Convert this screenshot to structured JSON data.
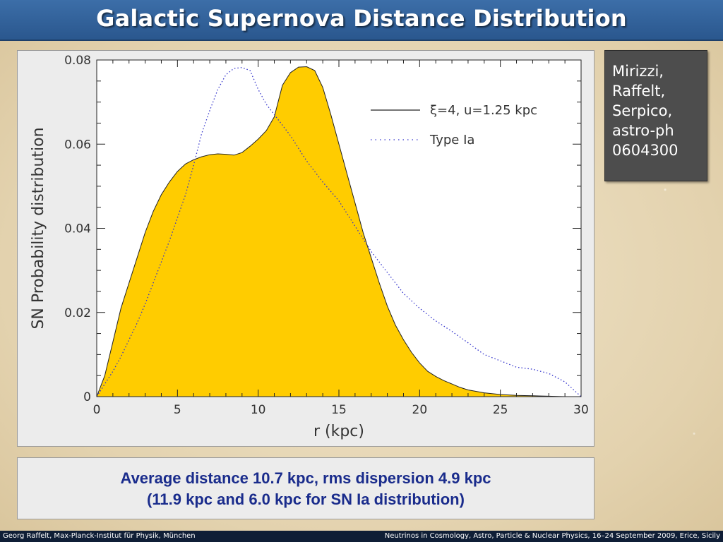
{
  "slide": {
    "title": "Galactic Supernova Distance Distribution",
    "reference_lines": [
      "Mirizzi,",
      "Raffelt,",
      "Serpico,",
      "astro-ph",
      "0604300"
    ],
    "summary_lines": [
      "Average distance 10.7 kpc, rms dispersion 4.9 kpc",
      "(11.9 kpc and 6.0 kpc for SN Ia distribution)"
    ],
    "footer_left": "Georg Raffelt, Max-Planck-Institut für Physik, München",
    "footer_right": "Neutrinos in Cosmology, Astro, Particle & Nuclear Physics, 16–24 September 2009, Erice, Sicily"
  },
  "colors": {
    "title_bar": "#2f5f99",
    "fill": "#ffcc00",
    "dotted": "#3333cc",
    "summary_text": "#1a2c8c",
    "ref_box": "#4d4d4d"
  },
  "chart_data": {
    "type": "area",
    "xlabel": "r (kpc)",
    "ylabel": "SN Probability distribution",
    "xlim": [
      0,
      30
    ],
    "ylim": [
      0,
      0.08
    ],
    "xticks": [
      "0",
      "5",
      "10",
      "15",
      "20",
      "25",
      "30"
    ],
    "yticks": [
      "0",
      "0.02",
      "0.04",
      "0.06",
      "0.08"
    ],
    "xtick_values": [
      0,
      5,
      10,
      15,
      20,
      25,
      30
    ],
    "ytick_values": [
      0,
      0.02,
      0.04,
      0.06,
      0.08
    ],
    "legend_position": "top-right",
    "series": [
      {
        "name": "ξ=4, u=1.25 kpc",
        "style": "solid-filled",
        "x": [
          0,
          0.5,
          1,
          1.5,
          2,
          2.5,
          3,
          3.5,
          4,
          4.5,
          5,
          5.5,
          6,
          6.5,
          7,
          7.5,
          8,
          8.5,
          9,
          9.5,
          10,
          10.5,
          11,
          11.5,
          12,
          12.5,
          13,
          13.5,
          14,
          14.5,
          15,
          15.5,
          16,
          16.5,
          17,
          17.5,
          18,
          18.5,
          19,
          19.5,
          20,
          20.5,
          21,
          21.5,
          22,
          22.5,
          23,
          24,
          25,
          26,
          27,
          28,
          29,
          30
        ],
        "y": [
          0,
          0.005,
          0.013,
          0.021,
          0.027,
          0.033,
          0.039,
          0.044,
          0.048,
          0.051,
          0.0535,
          0.0553,
          0.0563,
          0.057,
          0.0575,
          0.0577,
          0.0576,
          0.0574,
          0.058,
          0.0595,
          0.0612,
          0.0632,
          0.0665,
          0.074,
          0.077,
          0.0783,
          0.0784,
          0.0775,
          0.0735,
          0.067,
          0.06,
          0.053,
          0.046,
          0.039,
          0.033,
          0.027,
          0.0215,
          0.017,
          0.0135,
          0.0105,
          0.008,
          0.006,
          0.0048,
          0.0038,
          0.003,
          0.0022,
          0.0016,
          0.0009,
          0.0005,
          0.0003,
          0.0002,
          0.0001,
          0.0,
          0.0
        ]
      },
      {
        "name": "Type Ia",
        "style": "dotted",
        "x": [
          0,
          0.5,
          1,
          1.5,
          2,
          2.5,
          3,
          3.5,
          4,
          4.5,
          5,
          5.5,
          6,
          6.5,
          7,
          7.5,
          8,
          8.5,
          9,
          9.5,
          10,
          10.5,
          11,
          11.5,
          12,
          12.5,
          13,
          14,
          15,
          16,
          17,
          18,
          19,
          20,
          21,
          22,
          23,
          24,
          25,
          26,
          27,
          28,
          29,
          30
        ],
        "y": [
          0,
          0.003,
          0.006,
          0.0095,
          0.0135,
          0.0175,
          0.022,
          0.027,
          0.032,
          0.037,
          0.0425,
          0.048,
          0.055,
          0.0625,
          0.068,
          0.073,
          0.0765,
          0.078,
          0.0782,
          0.0775,
          0.073,
          0.0695,
          0.067,
          0.0645,
          0.062,
          0.059,
          0.056,
          0.051,
          0.0465,
          0.0405,
          0.0345,
          0.0295,
          0.0245,
          0.021,
          0.018,
          0.0155,
          0.0128,
          0.01,
          0.0085,
          0.007,
          0.0065,
          0.0055,
          0.0035,
          0.0
        ]
      }
    ]
  }
}
